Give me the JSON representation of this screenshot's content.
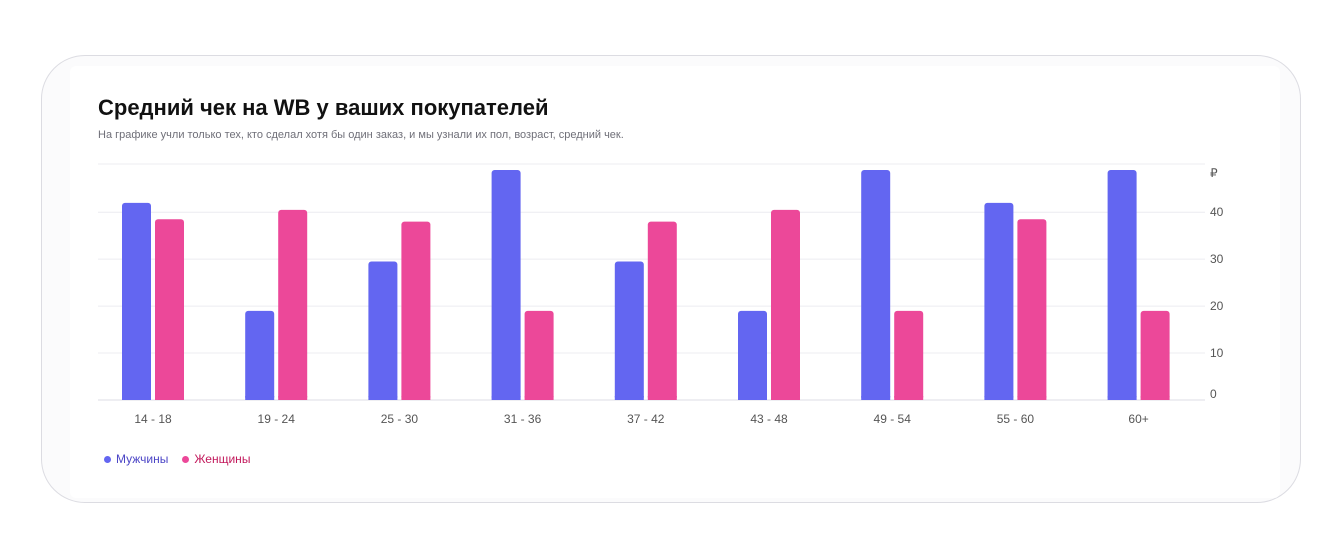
{
  "title": "Средний чек на WB у ваших покупателей",
  "subtitle": "На графике учли только тех, кто сделал хотя бы один заказ, и мы узнали их пол, возраст, средний чек.",
  "colors": {
    "men": "#6366f1",
    "women": "#ec4899",
    "men_text": "#4b45c6",
    "women_text": "#c2185b"
  },
  "chart_data": {
    "type": "bar",
    "categories": [
      "14 - 18",
      "19 - 24",
      "25 - 30",
      "31 - 36",
      "37 - 42",
      "43 - 48",
      "49 - 54",
      "55 - 60",
      "60+"
    ],
    "series": [
      {
        "name": "Мужчины",
        "values": [
          42,
          19,
          29.5,
          49,
          29.5,
          19,
          49,
          42,
          49
        ]
      },
      {
        "name": "Женщины",
        "values": [
          38.5,
          40.5,
          38,
          19,
          38,
          40.5,
          19,
          38.5,
          19
        ]
      }
    ],
    "ylim": [
      0,
      49
    ],
    "yticks": [
      0,
      10,
      20,
      30,
      40
    ],
    "y_unit_label": "₽",
    "y_axis_side": "right",
    "grid": true,
    "legend_position": "bottom-left"
  }
}
